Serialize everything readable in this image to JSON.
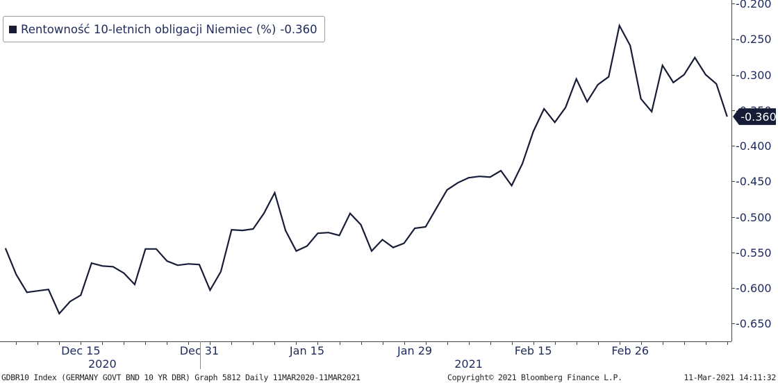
{
  "legend": {
    "series_label": "Rentowność 10-letnich obligacji Niemiec (%)",
    "last_value": "-0.360"
  },
  "footer": {
    "left": "GDBR10 Index (GERMANY GOVT BND 10 YR DBR) Graph 5812  Daily 11MAR2020-11MAR2021",
    "center": "Copyright© 2021 Bloomberg Finance L.P.",
    "right": "11-Mar-2021 14:11:32"
  },
  "chart_data": {
    "type": "line",
    "title": "",
    "xlabel": "",
    "ylabel": "",
    "ylim": [
      -0.675,
      -0.195
    ],
    "y_ticks": [
      -0.2,
      -0.25,
      -0.3,
      -0.35,
      -0.4,
      -0.45,
      -0.5,
      -0.55,
      -0.6,
      -0.65
    ],
    "y_tick_labels": [
      "-0.200",
      "-0.250",
      "-0.300",
      "-0.350",
      "-0.400",
      "-0.450",
      "-0.500",
      "-0.550",
      "-0.600",
      "-0.650"
    ],
    "x_tick_labels": [
      {
        "label": "Dec 15",
        "index": 7
      },
      {
        "label": "Dec 31",
        "index": 18
      },
      {
        "label": "Jan 15",
        "index": 28
      },
      {
        "label": "Jan 29",
        "index": 38
      },
      {
        "label": "Feb 15",
        "index": 49
      },
      {
        "label": "Feb 26",
        "index": 58
      }
    ],
    "year_labels": [
      {
        "label": "2020",
        "index": 9
      },
      {
        "label": "2021",
        "index": 43
      }
    ],
    "year_divider_index": 18.1,
    "x_index_range": [
      -0.5,
      67.4
    ],
    "current_value_label": "-0.360",
    "grid": false,
    "legend_position": "top-left",
    "series": [
      {
        "name": "Rentowność 10-letnich obligacji Niemiec (%)",
        "color": "#161c36",
        "values": [
          -0.544,
          -0.581,
          -0.606,
          -0.604,
          -0.602,
          -0.636,
          -0.619,
          -0.61,
          -0.565,
          -0.569,
          -0.57,
          -0.579,
          -0.595,
          -0.545,
          -0.545,
          -0.562,
          -0.568,
          -0.566,
          -0.567,
          -0.603,
          -0.577,
          -0.518,
          -0.519,
          -0.517,
          -0.495,
          -0.466,
          -0.519,
          -0.548,
          -0.541,
          -0.523,
          -0.522,
          -0.526,
          -0.495,
          -0.511,
          -0.548,
          -0.532,
          -0.543,
          -0.537,
          -0.516,
          -0.514,
          -0.488,
          -0.462,
          -0.452,
          -0.445,
          -0.443,
          -0.444,
          -0.435,
          -0.456,
          -0.425,
          -0.38,
          -0.348,
          -0.367,
          -0.346,
          -0.306,
          -0.338,
          -0.314,
          -0.303,
          -0.231,
          -0.259,
          -0.334,
          -0.352,
          -0.287,
          -0.311,
          -0.3,
          -0.276,
          -0.3,
          -0.313,
          -0.359
        ]
      }
    ]
  }
}
